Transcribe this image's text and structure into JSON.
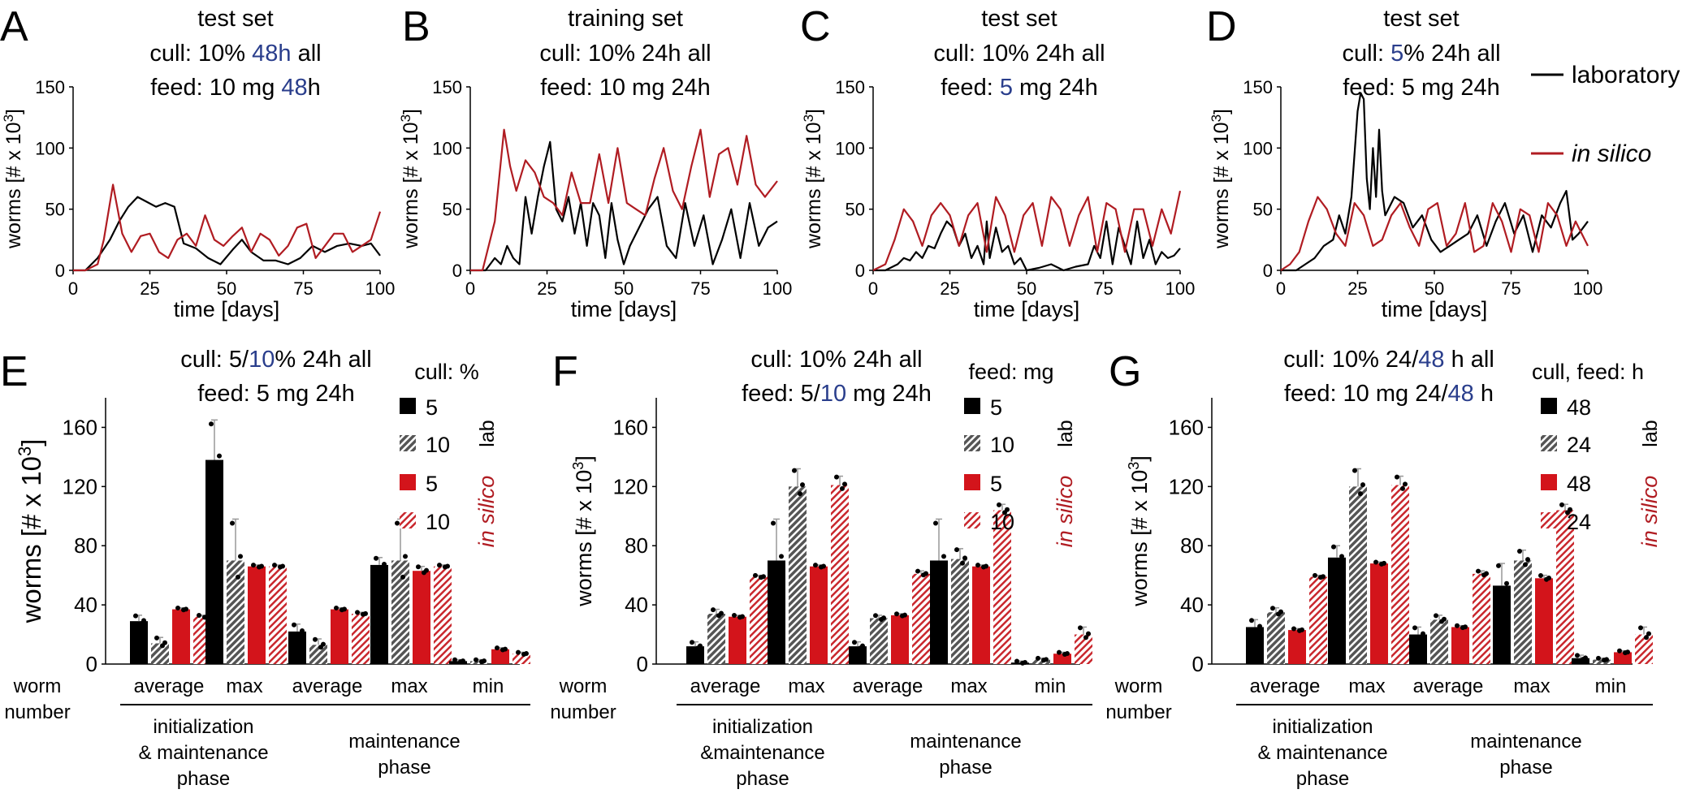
{
  "figure_title": "",
  "colors": {
    "lab": "#000000",
    "sim": "#b01c22",
    "highlight": "#2a3e8c",
    "hatch_gray": "#6b6b6b",
    "error": "#8a8a8a"
  },
  "ts_axis": {
    "ylabel": "worms [# x 10^3]",
    "ylabel_main": "worms [# x 10",
    "ylabel_sup": "3",
    "ylabel_close": "]",
    "xlabel": "time [days]",
    "yticks": [
      "0",
      "50",
      "100",
      "150"
    ],
    "xticks": [
      "0",
      "25",
      "50",
      "75",
      "100"
    ]
  },
  "legend_ts": {
    "lab": "laboratory",
    "sim": "in silico"
  },
  "panels_ts": [
    {
      "letter": "A",
      "set": "test set",
      "line1": [
        {
          "t": "cull: 10% ",
          "c": "k"
        },
        {
          "t": "48h",
          "c": "b"
        },
        {
          "t": " all",
          "c": "k"
        }
      ],
      "line2": [
        {
          "t": "feed: 10 mg ",
          "c": "k"
        },
        {
          "t": "48",
          "c": "b"
        },
        {
          "t": "h",
          "c": "k"
        }
      ]
    },
    {
      "letter": "B",
      "set": "training set",
      "line1": [
        {
          "t": "cull: 10% 24h all",
          "c": "k"
        }
      ],
      "line2": [
        {
          "t": "feed: 10 mg 24h",
          "c": "k"
        }
      ]
    },
    {
      "letter": "C",
      "set": "test set",
      "line1": [
        {
          "t": "cull: 10% 24h all",
          "c": "k"
        }
      ],
      "line2": [
        {
          "t": "feed: ",
          "c": "k"
        },
        {
          "t": "5",
          "c": "b"
        },
        {
          "t": " mg 24h",
          "c": "k"
        }
      ]
    },
    {
      "letter": "D",
      "set": "test set",
      "line1": [
        {
          "t": "cull: ",
          "c": "k"
        },
        {
          "t": "5",
          "c": "b"
        },
        {
          "t": "% 24h all",
          "c": "k"
        }
      ],
      "line2": [
        {
          "t": "feed: 5 mg 24h",
          "c": "k"
        }
      ]
    }
  ],
  "bar_axis": {
    "ylabel_main": "worms [# x 10",
    "ylabel_sup": "3",
    "ylabel_close": "]",
    "yticks": [
      "0",
      "40",
      "80",
      "120",
      "160"
    ],
    "worm_label": [
      "worm",
      "number"
    ],
    "cat_labels": [
      "average",
      "max",
      "average",
      "max",
      "min"
    ],
    "phase1": [
      "initialization",
      "& maintenance",
      "phase"
    ],
    "phase1_alt": [
      "initialization",
      "&maintenance",
      "phase"
    ],
    "phase2": [
      "maintenance",
      "phase"
    ],
    "lab_tag": "lab",
    "sim_tag": "in silico"
  },
  "panels_bar": [
    {
      "letter": "E",
      "line1": [
        {
          "t": "cull: 5/",
          "c": "k"
        },
        {
          "t": "10",
          "c": "b"
        },
        {
          "t": "% 24h all",
          "c": "k"
        }
      ],
      "line2": [
        {
          "t": "feed: 5 mg 24h",
          "c": "k"
        }
      ],
      "legend_title": "cull: %",
      "legend": [
        "5",
        "10",
        "5",
        "10"
      ]
    },
    {
      "letter": "F",
      "line1": [
        {
          "t": "cull: 10% 24h all",
          "c": "k"
        }
      ],
      "line2": [
        {
          "t": "feed: 5/",
          "c": "k"
        },
        {
          "t": "10",
          "c": "b"
        },
        {
          "t": " mg 24h",
          "c": "k"
        }
      ],
      "legend_title": "feed: mg",
      "legend": [
        "5",
        "10",
        "5",
        "10"
      ]
    },
    {
      "letter": "G",
      "line1": [
        {
          "t": "cull: 10% 24/",
          "c": "k"
        },
        {
          "t": "48",
          "c": "b"
        },
        {
          "t": " h all",
          "c": "k"
        }
      ],
      "line2": [
        {
          "t": "feed: 10 mg 24/",
          "c": "k"
        },
        {
          "t": "48",
          "c": "b"
        },
        {
          "t": " h",
          "c": "k"
        }
      ],
      "legend_title": "cull, feed: h",
      "legend": [
        "48",
        "24",
        "48",
        "24"
      ]
    }
  ],
  "chart_data": [
    {
      "panel": "A",
      "type": "line",
      "title": "test set",
      "xlabel": "time [days]",
      "ylabel": "worms [# x 10^3]",
      "xlim": [
        0,
        100
      ],
      "ylim": [
        0,
        150
      ],
      "series": [
        {
          "name": "laboratory",
          "x": [
            0,
            4,
            8,
            12,
            15,
            18,
            21,
            24,
            27,
            30,
            33,
            36,
            40,
            44,
            48,
            52,
            55,
            58,
            62,
            66,
            70,
            74,
            78,
            82,
            86,
            90,
            94,
            97,
            100
          ],
          "y": [
            0,
            0,
            10,
            25,
            40,
            52,
            60,
            56,
            52,
            55,
            52,
            22,
            18,
            10,
            5,
            17,
            25,
            15,
            8,
            8,
            5,
            10,
            20,
            15,
            20,
            22,
            20,
            22,
            12
          ]
        },
        {
          "name": "in silico",
          "x": [
            0,
            4,
            8,
            10,
            13,
            16,
            19,
            22,
            25,
            28,
            31,
            34,
            37,
            40,
            43,
            46,
            49,
            52,
            55,
            58,
            61,
            64,
            67,
            70,
            73,
            76,
            79,
            82,
            85,
            88,
            91,
            94,
            97,
            100
          ],
          "y": [
            0,
            0,
            5,
            25,
            70,
            30,
            15,
            28,
            30,
            15,
            10,
            25,
            30,
            20,
            45,
            25,
            20,
            28,
            35,
            15,
            30,
            25,
            12,
            20,
            35,
            38,
            10,
            20,
            30,
            30,
            15,
            20,
            25,
            48
          ]
        }
      ]
    },
    {
      "panel": "B",
      "type": "line",
      "title": "training set",
      "xlabel": "time [days]",
      "ylabel": "worms [# x 10^3]",
      "xlim": [
        0,
        100
      ],
      "ylim": [
        0,
        150
      ],
      "series": [
        {
          "name": "laboratory",
          "x": [
            0,
            5,
            8,
            10,
            12,
            14,
            16,
            18,
            20,
            22,
            24,
            26,
            28,
            30,
            32,
            34,
            36,
            38,
            40,
            42,
            44,
            46,
            48,
            50,
            52,
            55,
            58,
            61,
            64,
            67,
            70,
            73,
            76,
            79,
            82,
            85,
            88,
            91,
            94,
            97,
            100
          ],
          "y": [
            0,
            0,
            10,
            5,
            20,
            10,
            5,
            60,
            30,
            60,
            85,
            105,
            50,
            40,
            60,
            30,
            55,
            20,
            55,
            45,
            10,
            55,
            25,
            5,
            20,
            35,
            50,
            60,
            20,
            10,
            55,
            20,
            45,
            5,
            25,
            50,
            10,
            55,
            20,
            35,
            40
          ]
        },
        {
          "name": "in silico",
          "x": [
            0,
            4,
            8,
            11,
            13,
            15,
            18,
            21,
            24,
            27,
            30,
            33,
            36,
            39,
            42,
            45,
            48,
            51,
            54,
            57,
            60,
            63,
            66,
            69,
            72,
            75,
            78,
            81,
            84,
            87,
            90,
            93,
            96,
            100
          ],
          "y": [
            0,
            0,
            40,
            115,
            85,
            65,
            90,
            80,
            60,
            55,
            45,
            80,
            55,
            55,
            95,
            55,
            100,
            55,
            50,
            45,
            75,
            100,
            65,
            50,
            85,
            115,
            60,
            95,
            100,
            70,
            110,
            70,
            60,
            73
          ]
        }
      ]
    },
    {
      "panel": "C",
      "type": "line",
      "title": "test set",
      "xlabel": "time [days]",
      "ylabel": "worms [# x 10^3]",
      "xlim": [
        0,
        100
      ],
      "ylim": [
        0,
        150
      ],
      "series": [
        {
          "name": "laboratory",
          "x": [
            0,
            4,
            8,
            10,
            12,
            14,
            16,
            18,
            20,
            22,
            24,
            26,
            28,
            30,
            32,
            34,
            36,
            37,
            38,
            40,
            42,
            44,
            46,
            48,
            50,
            54,
            58,
            62,
            66,
            70,
            72,
            74,
            76,
            78,
            80,
            82,
            84,
            86,
            88,
            90,
            92,
            94,
            96,
            98,
            100
          ],
          "y": [
            0,
            0,
            5,
            10,
            8,
            15,
            10,
            20,
            18,
            30,
            40,
            35,
            20,
            30,
            10,
            20,
            5,
            40,
            10,
            35,
            15,
            20,
            5,
            10,
            0,
            2,
            5,
            0,
            3,
            5,
            20,
            10,
            40,
            5,
            35,
            20,
            5,
            40,
            10,
            25,
            5,
            15,
            10,
            12,
            18
          ]
        },
        {
          "name": "in silico",
          "x": [
            0,
            4,
            7,
            10,
            13,
            16,
            19,
            22,
            25,
            28,
            31,
            34,
            37,
            40,
            43,
            46,
            49,
            52,
            55,
            58,
            61,
            64,
            67,
            70,
            73,
            76,
            79,
            82,
            85,
            88,
            91,
            94,
            97,
            100
          ],
          "y": [
            0,
            5,
            25,
            50,
            40,
            20,
            45,
            55,
            45,
            20,
            45,
            55,
            15,
            60,
            45,
            15,
            45,
            55,
            20,
            60,
            50,
            20,
            45,
            60,
            15,
            55,
            50,
            15,
            50,
            50,
            20,
            50,
            30,
            65
          ]
        }
      ]
    },
    {
      "panel": "D",
      "type": "line",
      "title": "test set",
      "xlabel": "time [days]",
      "ylabel": "worms [# x 10^3]",
      "xlim": [
        0,
        100
      ],
      "ylim": [
        0,
        150
      ],
      "series": [
        {
          "name": "laboratory",
          "x": [
            0,
            5,
            8,
            11,
            14,
            17,
            19,
            21,
            23,
            25,
            26,
            27,
            28,
            29,
            30,
            31,
            32,
            33,
            34,
            35,
            37,
            40,
            43,
            46,
            49,
            52,
            55,
            58,
            61,
            64,
            67,
            70,
            73,
            76,
            79,
            82,
            85,
            88,
            91,
            93,
            95,
            97,
            100
          ],
          "y": [
            0,
            0,
            5,
            10,
            20,
            25,
            45,
            30,
            60,
            130,
            145,
            140,
            75,
            50,
            100,
            60,
            115,
            65,
            45,
            50,
            60,
            55,
            35,
            45,
            25,
            15,
            20,
            25,
            30,
            45,
            20,
            40,
            55,
            30,
            45,
            15,
            45,
            35,
            55,
            65,
            25,
            30,
            40
          ]
        },
        {
          "name": "in silico",
          "x": [
            0,
            3,
            6,
            9,
            12,
            15,
            18,
            21,
            24,
            27,
            30,
            33,
            36,
            39,
            42,
            45,
            48,
            51,
            54,
            57,
            60,
            63,
            66,
            69,
            72,
            75,
            78,
            81,
            84,
            87,
            90,
            93,
            96,
            100
          ],
          "y": [
            0,
            5,
            15,
            40,
            60,
            50,
            30,
            20,
            55,
            45,
            20,
            25,
            45,
            55,
            35,
            20,
            50,
            55,
            20,
            30,
            55,
            15,
            20,
            55,
            40,
            15,
            50,
            45,
            15,
            55,
            45,
            20,
            40,
            20
          ]
        }
      ]
    },
    {
      "panel": "E",
      "type": "bar",
      "ylabel": "worms [# x 10^3]",
      "ylim": [
        0,
        180
      ],
      "categories": [
        "average",
        "max",
        "average",
        "max",
        "min"
      ],
      "series": [
        {
          "name": "5 lab",
          "values": [
            29,
            138,
            22,
            67,
            2
          ],
          "errors": [
            4,
            27,
            5,
            5,
            1
          ]
        },
        {
          "name": "10 lab",
          "values": [
            14,
            70,
            13,
            70,
            2
          ],
          "errors": [
            4,
            28,
            4,
            28,
            1
          ]
        },
        {
          "name": "5 in silico",
          "values": [
            37,
            66,
            37,
            63,
            10
          ],
          "errors": [
            1,
            1,
            1,
            3,
            1
          ]
        },
        {
          "name": "10 in silico",
          "values": [
            32,
            66,
            34,
            66,
            7
          ],
          "errors": [
            1,
            1,
            1,
            1,
            1
          ]
        }
      ]
    },
    {
      "panel": "F",
      "type": "bar",
      "ylabel": "worms [# x 10^3]",
      "ylim": [
        0,
        180
      ],
      "categories": [
        "average",
        "max",
        "average",
        "max",
        "min"
      ],
      "series": [
        {
          "name": "5 lab",
          "values": [
            12,
            70,
            12,
            70,
            1
          ],
          "errors": [
            3,
            28,
            3,
            28,
            1
          ]
        },
        {
          "name": "10 lab",
          "values": [
            34,
            120,
            31,
            71,
            3
          ],
          "errors": [
            3,
            12,
            2,
            7,
            1
          ]
        },
        {
          "name": "5 in silico",
          "values": [
            32,
            66,
            33,
            66,
            7
          ],
          "errors": [
            1,
            1,
            1,
            1,
            1
          ]
        },
        {
          "name": "10 in silico",
          "values": [
            59,
            121,
            61,
            104,
            20
          ],
          "errors": [
            1,
            6,
            2,
            4,
            5
          ]
        }
      ]
    },
    {
      "panel": "G",
      "type": "bar",
      "ylabel": "worms [# x 10^3]",
      "ylim": [
        0,
        180
      ],
      "categories": [
        "average",
        "max",
        "average",
        "max",
        "min"
      ],
      "series": [
        {
          "name": "48 lab",
          "values": [
            25,
            72,
            20,
            53,
            4
          ],
          "errors": [
            5,
            8,
            5,
            15,
            2
          ]
        },
        {
          "name": "24 lab",
          "values": [
            35,
            120,
            30,
            70,
            3
          ],
          "errors": [
            3,
            12,
            3,
            7,
            1
          ]
        },
        {
          "name": "48 in silico",
          "values": [
            23,
            68,
            25,
            58,
            8
          ],
          "errors": [
            1,
            1,
            1,
            2,
            1
          ]
        },
        {
          "name": "24 in silico",
          "values": [
            59,
            121,
            61,
            104,
            20
          ],
          "errors": [
            1,
            6,
            2,
            4,
            5
          ]
        }
      ]
    }
  ]
}
